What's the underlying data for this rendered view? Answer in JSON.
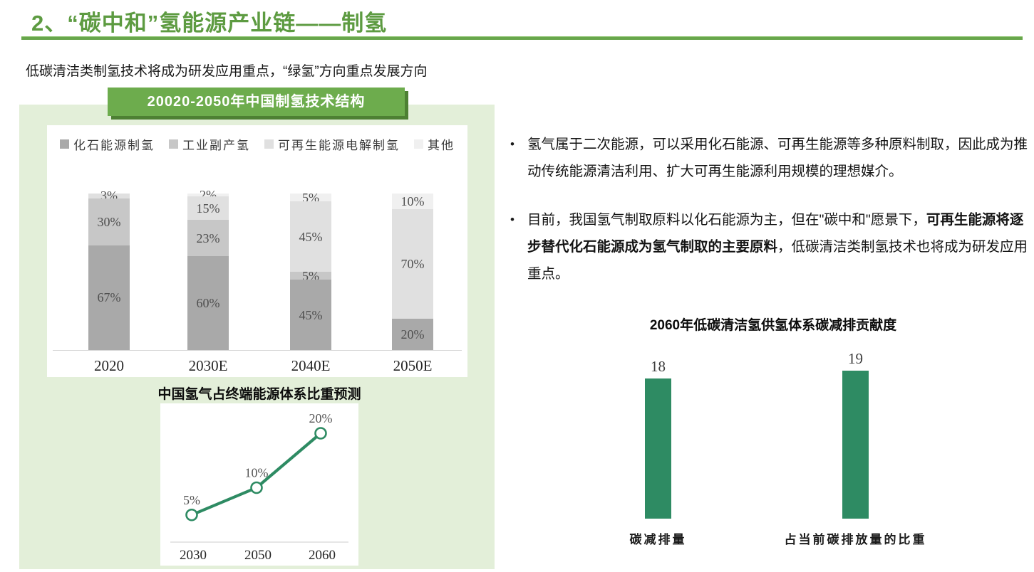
{
  "header": {
    "title": "2、“碳中和”氢能源产业链——制氢",
    "subtitle": "低碳清洁类制氢技术将成为研发应用重点，“绿氢”方向重点发展方向"
  },
  "colors": {
    "title_green": "#5d9b41",
    "rule_green": "#68a64c",
    "badge_green": "#6dac4d",
    "badge_shadow_green": "#4d8033",
    "panel_green": "#e3efd9",
    "chart_green": "#2e8b63"
  },
  "left_panel": {
    "badge": "20020-2050年中国制氢技术结构"
  },
  "bullets": [
    {
      "text": "氢气属于二次能源，可以采用化石能源、可再生能源等多种原料制取，因此成为推动传统能源清洁利用、扩大可再生能源利用规模的理想媒介。"
    },
    {
      "pre": "目前，我国氢气制取原料以化石能源为主，但在\"碳中和\"愿景下，",
      "bold": "可再生能源将逐步替代化石能源成为氢气制取的主要原料",
      "post": "，低碳清洁类制氢技术也将成为研发应用重点。"
    }
  ],
  "chart_data": [
    {
      "type": "bar",
      "stacked": true,
      "title": "20020-2050年中国制氢技术结构",
      "categories": [
        "2020",
        "2030E",
        "2040E",
        "2050E"
      ],
      "series": [
        {
          "name": "化石能源制氢",
          "color": "#a9a9a9",
          "values": [
            67,
            60,
            45,
            20
          ]
        },
        {
          "name": "工业副产氢",
          "color": "#c7c7c7",
          "values": [
            30,
            23,
            5,
            0
          ]
        },
        {
          "name": "可再生能源电解制氢",
          "color": "#e0e0e0",
          "values": [
            3,
            15,
            45,
            70
          ]
        },
        {
          "name": "其他",
          "color": "#f0f0f0",
          "values": [
            0,
            2,
            5,
            10
          ]
        }
      ],
      "unit": "%",
      "ylim": [
        0,
        100
      ],
      "grid": false,
      "legend_position": "top"
    },
    {
      "type": "line",
      "title": "中国氢气占终端能源体系比重预测",
      "x": [
        "2030",
        "2050",
        "2060"
      ],
      "values": [
        5,
        10,
        20
      ],
      "point_labels": [
        "5%",
        "10%",
        "20%"
      ],
      "color": "#2e8b63",
      "marker": "open-circle",
      "grid": false
    },
    {
      "type": "bar",
      "title": "2060年低碳清洁氢供氢体系碳减排贡献度",
      "categories": [
        "碳减排量",
        "占当前碳排放量的比重"
      ],
      "values": [
        18,
        19
      ],
      "color": "#2e8b63",
      "grid": false
    }
  ]
}
